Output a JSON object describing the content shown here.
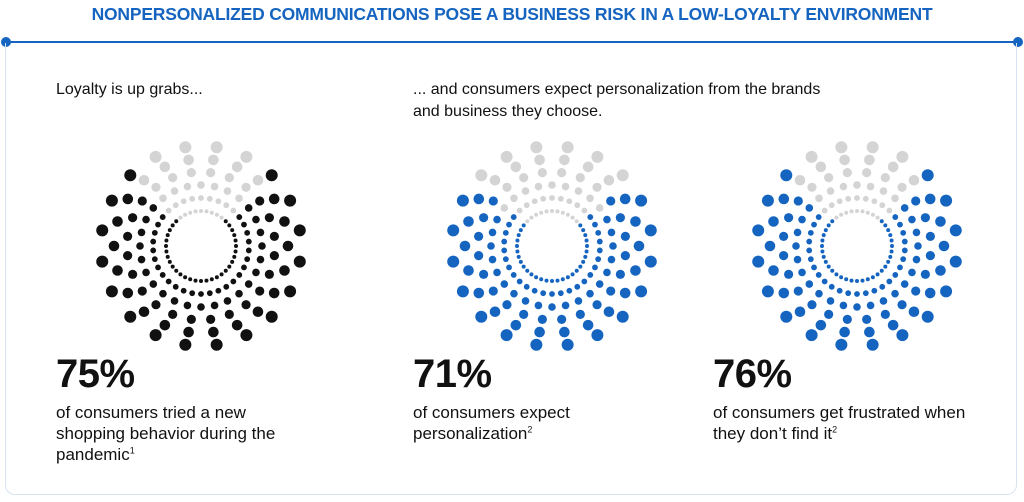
{
  "header": {
    "title": "NONPERSONALIZED COMMUNICATIONS POSE A BUSINESS RISK IN A LOW-LOYALTY ENVIRONMENT"
  },
  "intro": {
    "left": "Loyalty is up grabs...",
    "right": "... and consumers expect personalization from the brands and business they choose."
  },
  "colors": {
    "accent": "#1565c0",
    "header_text": "#1565c0",
    "dark": "#111111",
    "grey": "#d4d4d4",
    "blue": "#1565c0"
  },
  "chart_data": [
    {
      "type": "pie",
      "value": 75,
      "value_label": "75%",
      "description": "of consumers tried a new shopping behavior during the pandemic",
      "footnote": "1",
      "filled_color": "#111111",
      "empty_color": "#d4d4d4"
    },
    {
      "type": "pie",
      "value": 71,
      "value_label": "71%",
      "description": "of consumers expect personalization",
      "footnote": "2",
      "filled_color": "#1565c0",
      "empty_color": "#d4d4d4"
    },
    {
      "type": "pie",
      "value": 76,
      "value_label": "76%",
      "description": "of consumers get frustrated when they don’t find it",
      "footnote": "2",
      "filled_color": "#1565c0",
      "empty_color": "#d4d4d4"
    }
  ]
}
